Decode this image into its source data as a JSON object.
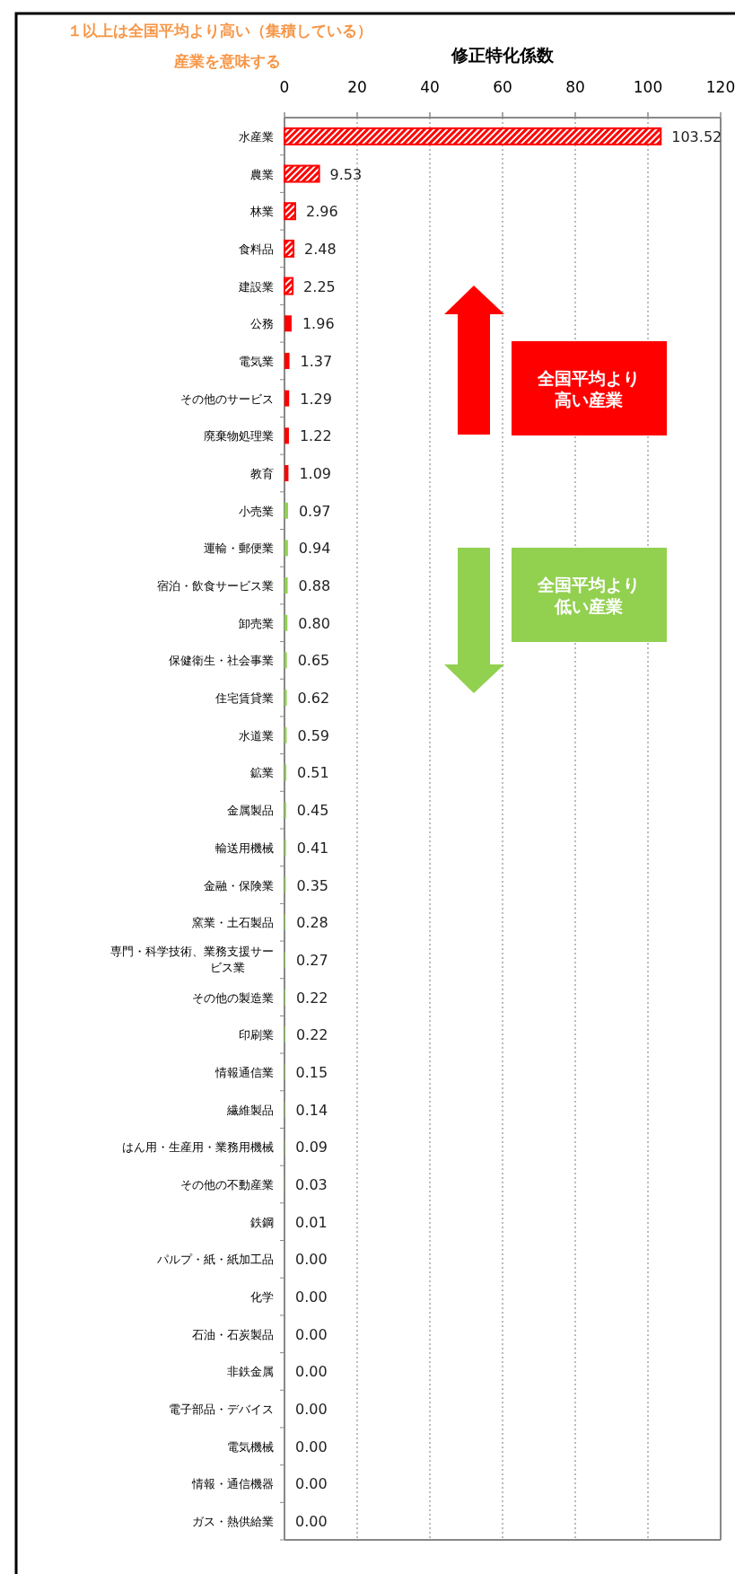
{
  "chart_data": {
    "type": "bar",
    "orientation": "horizontal",
    "xlabel": "修正特化係数",
    "annotations": [
      "１以上は全国平均より高い（集積している）産業を意味する",
      "全国平均より高い産業",
      "全国平均より低い産業"
    ],
    "categories": [
      "水産業",
      "農業",
      "林業",
      "食料品",
      "建設業",
      "公務",
      "電気業",
      "その他のサービス",
      "廃棄物処理業",
      "教育",
      "小売業",
      "運輸・郵便業",
      "宿泊・飲食サービス業",
      "卸売業",
      "保健衛生・社会事業",
      "住宅賃貸業",
      "水道業",
      "鉱業",
      "金属製品",
      "輸送用機械",
      "金融・保険業",
      "窯業・土石製品",
      "専門・科学技術、業務支援サービス業",
      "その他の製造業",
      "印刷業",
      "情報通信業",
      "繊維製品",
      "はん用・生産用・業務用機械",
      "その他の不動産業",
      "鉄鋼",
      "パルプ・紙・紙加工品",
      "化学",
      "石油・石炭製品",
      "非鉄金属",
      "電子部品・デバイス",
      "電気機械",
      "情報・通信機器",
      "ガス・熱供給業"
    ],
    "values": [
      103.52,
      9.53,
      2.96,
      2.48,
      2.25,
      1.96,
      1.37,
      1.29,
      1.22,
      1.09,
      0.97,
      0.94,
      0.88,
      0.8,
      0.65,
      0.62,
      0.59,
      0.51,
      0.45,
      0.41,
      0.35,
      0.28,
      0.27,
      0.22,
      0.22,
      0.15,
      0.14,
      0.09,
      0.03,
      0.01,
      0,
      0,
      0,
      0,
      0,
      0,
      0,
      0
    ],
    "value_labels": [
      "103.52",
      "9.53",
      "2.96",
      "2.48",
      "2.25",
      "1.96",
      "1.37",
      "1.29",
      "1.22",
      "1.09",
      "0.97",
      "0.94",
      "0.88",
      "0.80",
      "0.65",
      "0.62",
      "0.59",
      "0.51",
      "0.45",
      "0.41",
      "0.35",
      "0.28",
      "0.27",
      "0.22",
      "0.22",
      "0.15",
      "0.14",
      "0.09",
      "0.03",
      "0.01",
      "0.00",
      "0.00",
      "0.00",
      "0.00",
      "0.00",
      "0.00",
      "0.00",
      "0.00"
    ],
    "colors": [
      "#ff0000",
      "#ff0000",
      "#ff0000",
      "#ff0000",
      "#ff0000",
      "#ff0000",
      "#ff0000",
      "#ff0000",
      "#ff0000",
      "#ff0000",
      "#92d050",
      "#92d050",
      "#92d050",
      "#92d050",
      "#92d050",
      "#92d050",
      "#92d050",
      "#92d050",
      "#92d050",
      "#92d050",
      "#92d050",
      "#92d050",
      "#92d050",
      "#92d050",
      "#92d050",
      "#92d050",
      "#92d050",
      "#92d050",
      "#92d050",
      "#92d050",
      "#92d050",
      "#92d050",
      "#92d050",
      "#92d050",
      "#92d050",
      "#92d050",
      "#92d050",
      "#92d050"
    ],
    "xlim": [
      0,
      120
    ],
    "xticks": [
      0,
      20,
      40,
      60,
      80,
      100,
      120
    ],
    "grid": "x"
  }
}
